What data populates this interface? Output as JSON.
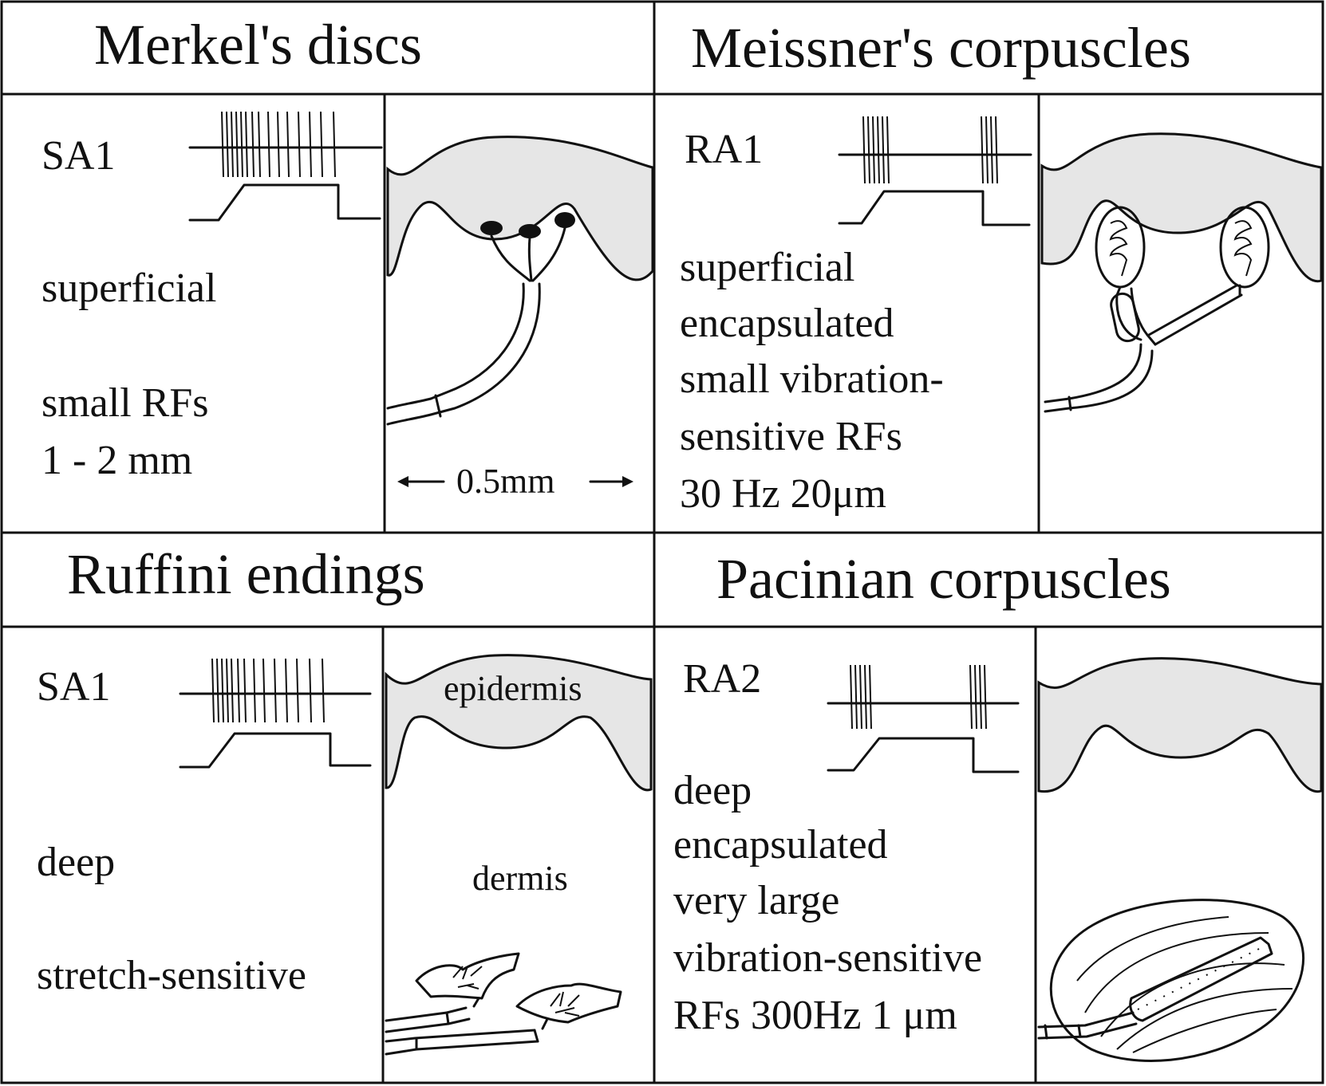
{
  "panels": [
    {
      "title": "Merkel's discs",
      "type_label": "SA1",
      "lines": [
        "superficial",
        "",
        "small RFs",
        "1 - 2 mm"
      ],
      "scale_label": "0.5mm"
    },
    {
      "title": "Meissner's corpuscles",
      "type_label": "RA1",
      "lines": [
        "superficial",
        "encapsulated",
        "small vibration-",
        "sensitive RFs",
        "30 Hz 20μm"
      ]
    },
    {
      "title": "Ruffini endings",
      "type_label": "SA1",
      "lines": [
        "deep",
        "",
        "stretch-sensitive"
      ],
      "epidermis_label": "epidermis",
      "dermis_label": "dermis"
    },
    {
      "title": "Pacinian corpuscles",
      "type_label": "RA2",
      "lines": [
        "deep",
        "encapsulated",
        "very large",
        "vibration-sensitive",
        "RFs  300Hz 1 μm"
      ]
    }
  ],
  "colors": {
    "ink": "#111111",
    "skin": "#e6e6e6",
    "background": "#ffffff"
  }
}
